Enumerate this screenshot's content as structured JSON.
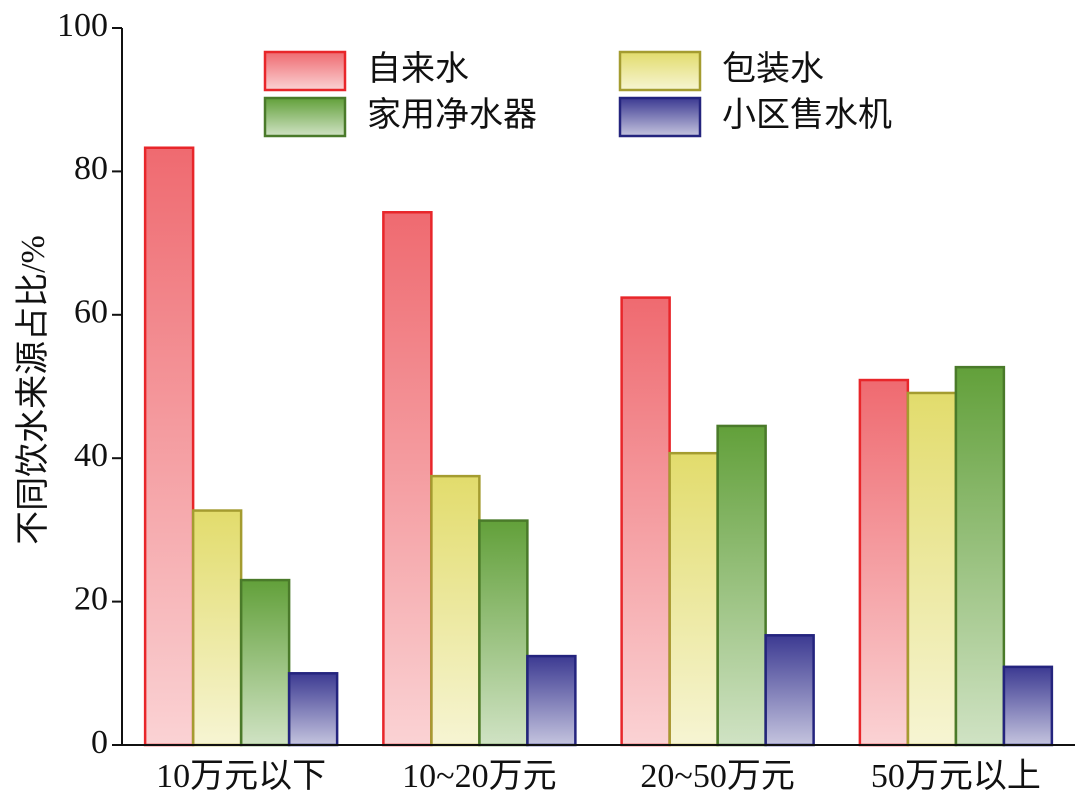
{
  "chart_data": {
    "type": "bar",
    "y_label": "不同饮水来源占比/%",
    "categories": [
      "10万元以下",
      "10~20万元",
      "20~50万元",
      "50万元以上"
    ],
    "series": [
      {
        "name": "自来水",
        "color": "#ef6a70",
        "edge": "#e8262a",
        "values": [
          83.3,
          74.3,
          62.4,
          50.9
        ]
      },
      {
        "name": "包装水",
        "color": "#e2dc6c",
        "edge": "#a49c30",
        "values": [
          32.7,
          37.5,
          40.7,
          49.1
        ]
      },
      {
        "name": "家用净水器",
        "color": "#62a03a",
        "edge": "#4a7a2a",
        "values": [
          23.0,
          31.3,
          44.5,
          52.7
        ]
      },
      {
        "name": "小区售水机",
        "color": "#3c3a92",
        "edge": "#24247e",
        "values": [
          10.0,
          12.4,
          15.3,
          10.9
        ]
      }
    ],
    "ylim": [
      0,
      100
    ],
    "yticks": [
      0,
      20,
      40,
      60,
      80,
      100
    ]
  }
}
